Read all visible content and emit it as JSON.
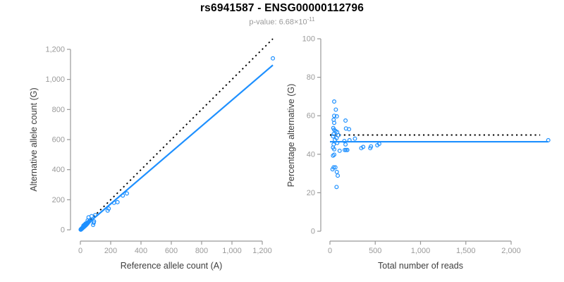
{
  "header": {
    "title": "rs6941587 - ENSG00000112796",
    "subtitle_prefix": "p-value: 6.68×10",
    "subtitle_exponent": "-11"
  },
  "colors": {
    "accent_blue": "#1E90FF",
    "dotted_black": "#000000",
    "axis_line": "#999999",
    "tick_label": "#9a9a9a",
    "axis_title": "#3d3d3d",
    "subtitle_gray": "#9a9a9a",
    "background": "#ffffff"
  },
  "chart_data": [
    {
      "type": "scatter",
      "name": "allele-count-scatter",
      "xlabel": "Reference allele count (A)",
      "ylabel": "Alternative allele count (G)",
      "xlim": [
        0,
        1290
      ],
      "ylim": [
        0,
        1290
      ],
      "xticks": [
        0,
        200,
        400,
        600,
        800,
        1000,
        1200
      ],
      "yticks": [
        0,
        200,
        400,
        600,
        800,
        1000,
        1200
      ],
      "grid": false,
      "legend": "none",
      "points": [
        [
          2,
          2
        ],
        [
          3,
          1
        ],
        [
          4,
          4
        ],
        [
          5,
          3
        ],
        [
          6,
          6
        ],
        [
          7,
          5
        ],
        [
          8,
          8
        ],
        [
          9,
          7
        ],
        [
          10,
          10
        ],
        [
          11,
          8
        ],
        [
          12,
          12
        ],
        [
          13,
          10
        ],
        [
          14,
          14
        ],
        [
          15,
          12
        ],
        [
          16,
          16
        ],
        [
          17,
          14
        ],
        [
          18,
          17
        ],
        [
          19,
          16
        ],
        [
          20,
          20
        ],
        [
          20,
          28
        ],
        [
          22,
          18
        ],
        [
          23,
          22
        ],
        [
          25,
          21
        ],
        [
          26,
          25
        ],
        [
          28,
          24
        ],
        [
          28,
          35
        ],
        [
          30,
          29
        ],
        [
          31,
          26
        ],
        [
          33,
          32
        ],
        [
          35,
          30
        ],
        [
          35,
          42
        ],
        [
          37,
          36
        ],
        [
          39,
          34
        ],
        [
          41,
          40
        ],
        [
          43,
          38
        ],
        [
          45,
          44
        ],
        [
          47,
          42
        ],
        [
          50,
          48
        ],
        [
          52,
          50
        ],
        [
          55,
          53
        ],
        [
          58,
          56
        ],
        [
          60,
          58
        ],
        [
          48,
          62
        ],
        [
          54,
          83
        ],
        [
          67,
          67
        ],
        [
          74,
          91
        ],
        [
          84,
          33
        ],
        [
          88,
          47
        ],
        [
          90,
          56
        ],
        [
          98,
          98
        ],
        [
          180,
          128
        ],
        [
          187,
          141
        ],
        [
          222,
          180
        ],
        [
          245,
          184
        ],
        [
          280,
          228
        ],
        [
          307,
          242
        ],
        [
          1270,
          1140
        ]
      ],
      "lines": [
        {
          "name": "identity-line",
          "style": "dotted",
          "color": "#000000",
          "from": [
            0,
            0
          ],
          "to": [
            1270,
            1270
          ]
        },
        {
          "name": "regression-line",
          "style": "solid",
          "color": "#1E90FF",
          "from": [
            0,
            0
          ],
          "to": [
            1270,
            1095
          ]
        }
      ]
    },
    {
      "type": "scatter",
      "name": "percentage-vs-reads-scatter",
      "xlabel": "Total number of reads",
      "ylabel": "Percentage alternative (G)",
      "xlim": [
        0,
        2450
      ],
      "ylim": [
        0,
        100
      ],
      "xticks": [
        0,
        500,
        1000,
        1500,
        2000
      ],
      "yticks": [
        0,
        20,
        40,
        60,
        80,
        100
      ],
      "grid": false,
      "legend": "none",
      "points": [
        [
          47,
          67.4
        ],
        [
          65,
          63.2
        ],
        [
          47,
          60
        ],
        [
          76,
          59.7
        ],
        [
          41,
          57.9
        ],
        [
          172,
          57.5
        ],
        [
          47,
          56.3
        ],
        [
          37,
          53.6
        ],
        [
          177,
          53.4
        ],
        [
          211,
          53
        ],
        [
          47,
          52.7
        ],
        [
          63,
          52
        ],
        [
          80,
          51.5
        ],
        [
          41,
          50.5
        ],
        [
          94,
          49.9
        ],
        [
          34,
          49.3
        ],
        [
          73,
          48.4
        ],
        [
          55,
          47.5
        ],
        [
          159,
          46.9
        ],
        [
          216,
          47.3
        ],
        [
          276,
          48.1
        ],
        [
          80,
          45.9
        ],
        [
          41,
          45.1
        ],
        [
          172,
          45.1
        ],
        [
          34,
          43.5
        ],
        [
          47,
          42.6
        ],
        [
          107,
          41.8
        ],
        [
          164,
          42.2
        ],
        [
          178,
          42.2
        ],
        [
          192,
          42.2
        ],
        [
          346,
          43.2
        ],
        [
          367,
          43.8
        ],
        [
          445,
          43.2
        ],
        [
          453,
          44.1
        ],
        [
          523,
          44.7
        ],
        [
          544,
          45.4
        ],
        [
          47,
          39.8
        ],
        [
          34,
          39.3
        ],
        [
          41,
          33.2
        ],
        [
          60,
          33.2
        ],
        [
          29,
          32.2
        ],
        [
          76,
          30.8
        ],
        [
          86,
          28.9
        ],
        [
          73,
          23
        ],
        [
          2410,
          47.3
        ]
      ],
      "lines": [
        {
          "name": "expected-percentage-line",
          "style": "dotted",
          "color": "#000000",
          "from": [
            0,
            50
          ],
          "to": [
            2320,
            50
          ]
        },
        {
          "name": "fitted-percentage-line",
          "style": "solid",
          "color": "#1E90FF",
          "from": [
            0,
            46.5
          ],
          "to": [
            2410,
            46.5
          ]
        }
      ]
    }
  ]
}
